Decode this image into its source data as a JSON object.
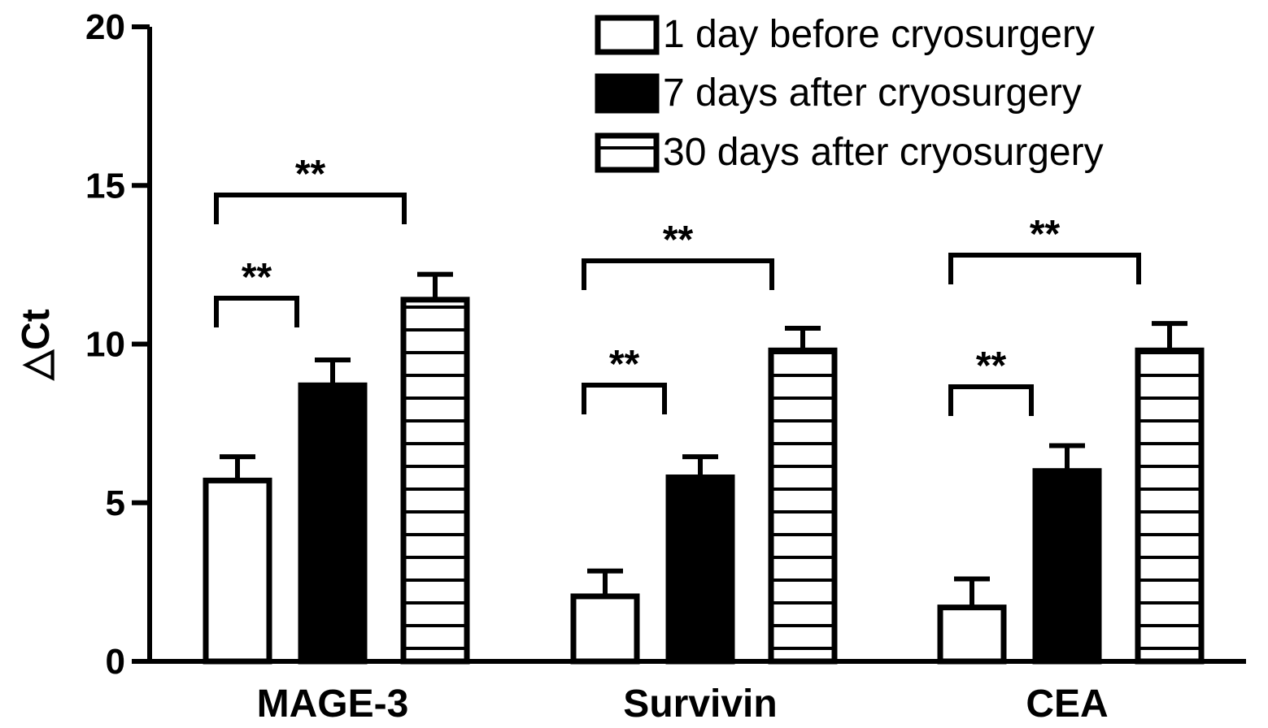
{
  "chart_data": {
    "type": "bar",
    "ylabel": "△Ct",
    "xlabel": "",
    "ylim": [
      0,
      20
    ],
    "yticks": [
      0,
      5,
      10,
      15,
      20
    ],
    "categories": [
      "MAGE-3",
      "Survivin",
      "CEA"
    ],
    "series": [
      {
        "name": "1 day before cryosurgery",
        "fill": "white",
        "values": [
          5.7,
          2.05,
          1.7
        ],
        "errors": [
          0.75,
          0.8,
          0.9
        ]
      },
      {
        "name": "7 days after cryosurgery",
        "fill": "black",
        "values": [
          8.7,
          5.8,
          6.0
        ],
        "errors": [
          0.8,
          0.65,
          0.8
        ]
      },
      {
        "name": "30 days after cryosurgery",
        "fill": "hatched",
        "values": [
          11.4,
          9.8,
          9.8
        ],
        "errors": [
          0.8,
          0.7,
          0.85
        ]
      }
    ],
    "legend": "top-right",
    "annotations": [
      {
        "category": "MAGE-3",
        "from_series": 0,
        "to_series": 1,
        "text": "**"
      },
      {
        "category": "MAGE-3",
        "from_series": 0,
        "to_series": 2,
        "text": "**"
      },
      {
        "category": "Survivin",
        "from_series": 0,
        "to_series": 1,
        "text": "**"
      },
      {
        "category": "Survivin",
        "from_series": 0,
        "to_series": 2,
        "text": "**"
      },
      {
        "category": "CEA",
        "from_series": 0,
        "to_series": 1,
        "text": "**"
      },
      {
        "category": "CEA",
        "from_series": 0,
        "to_series": 2,
        "text": "**"
      }
    ]
  }
}
